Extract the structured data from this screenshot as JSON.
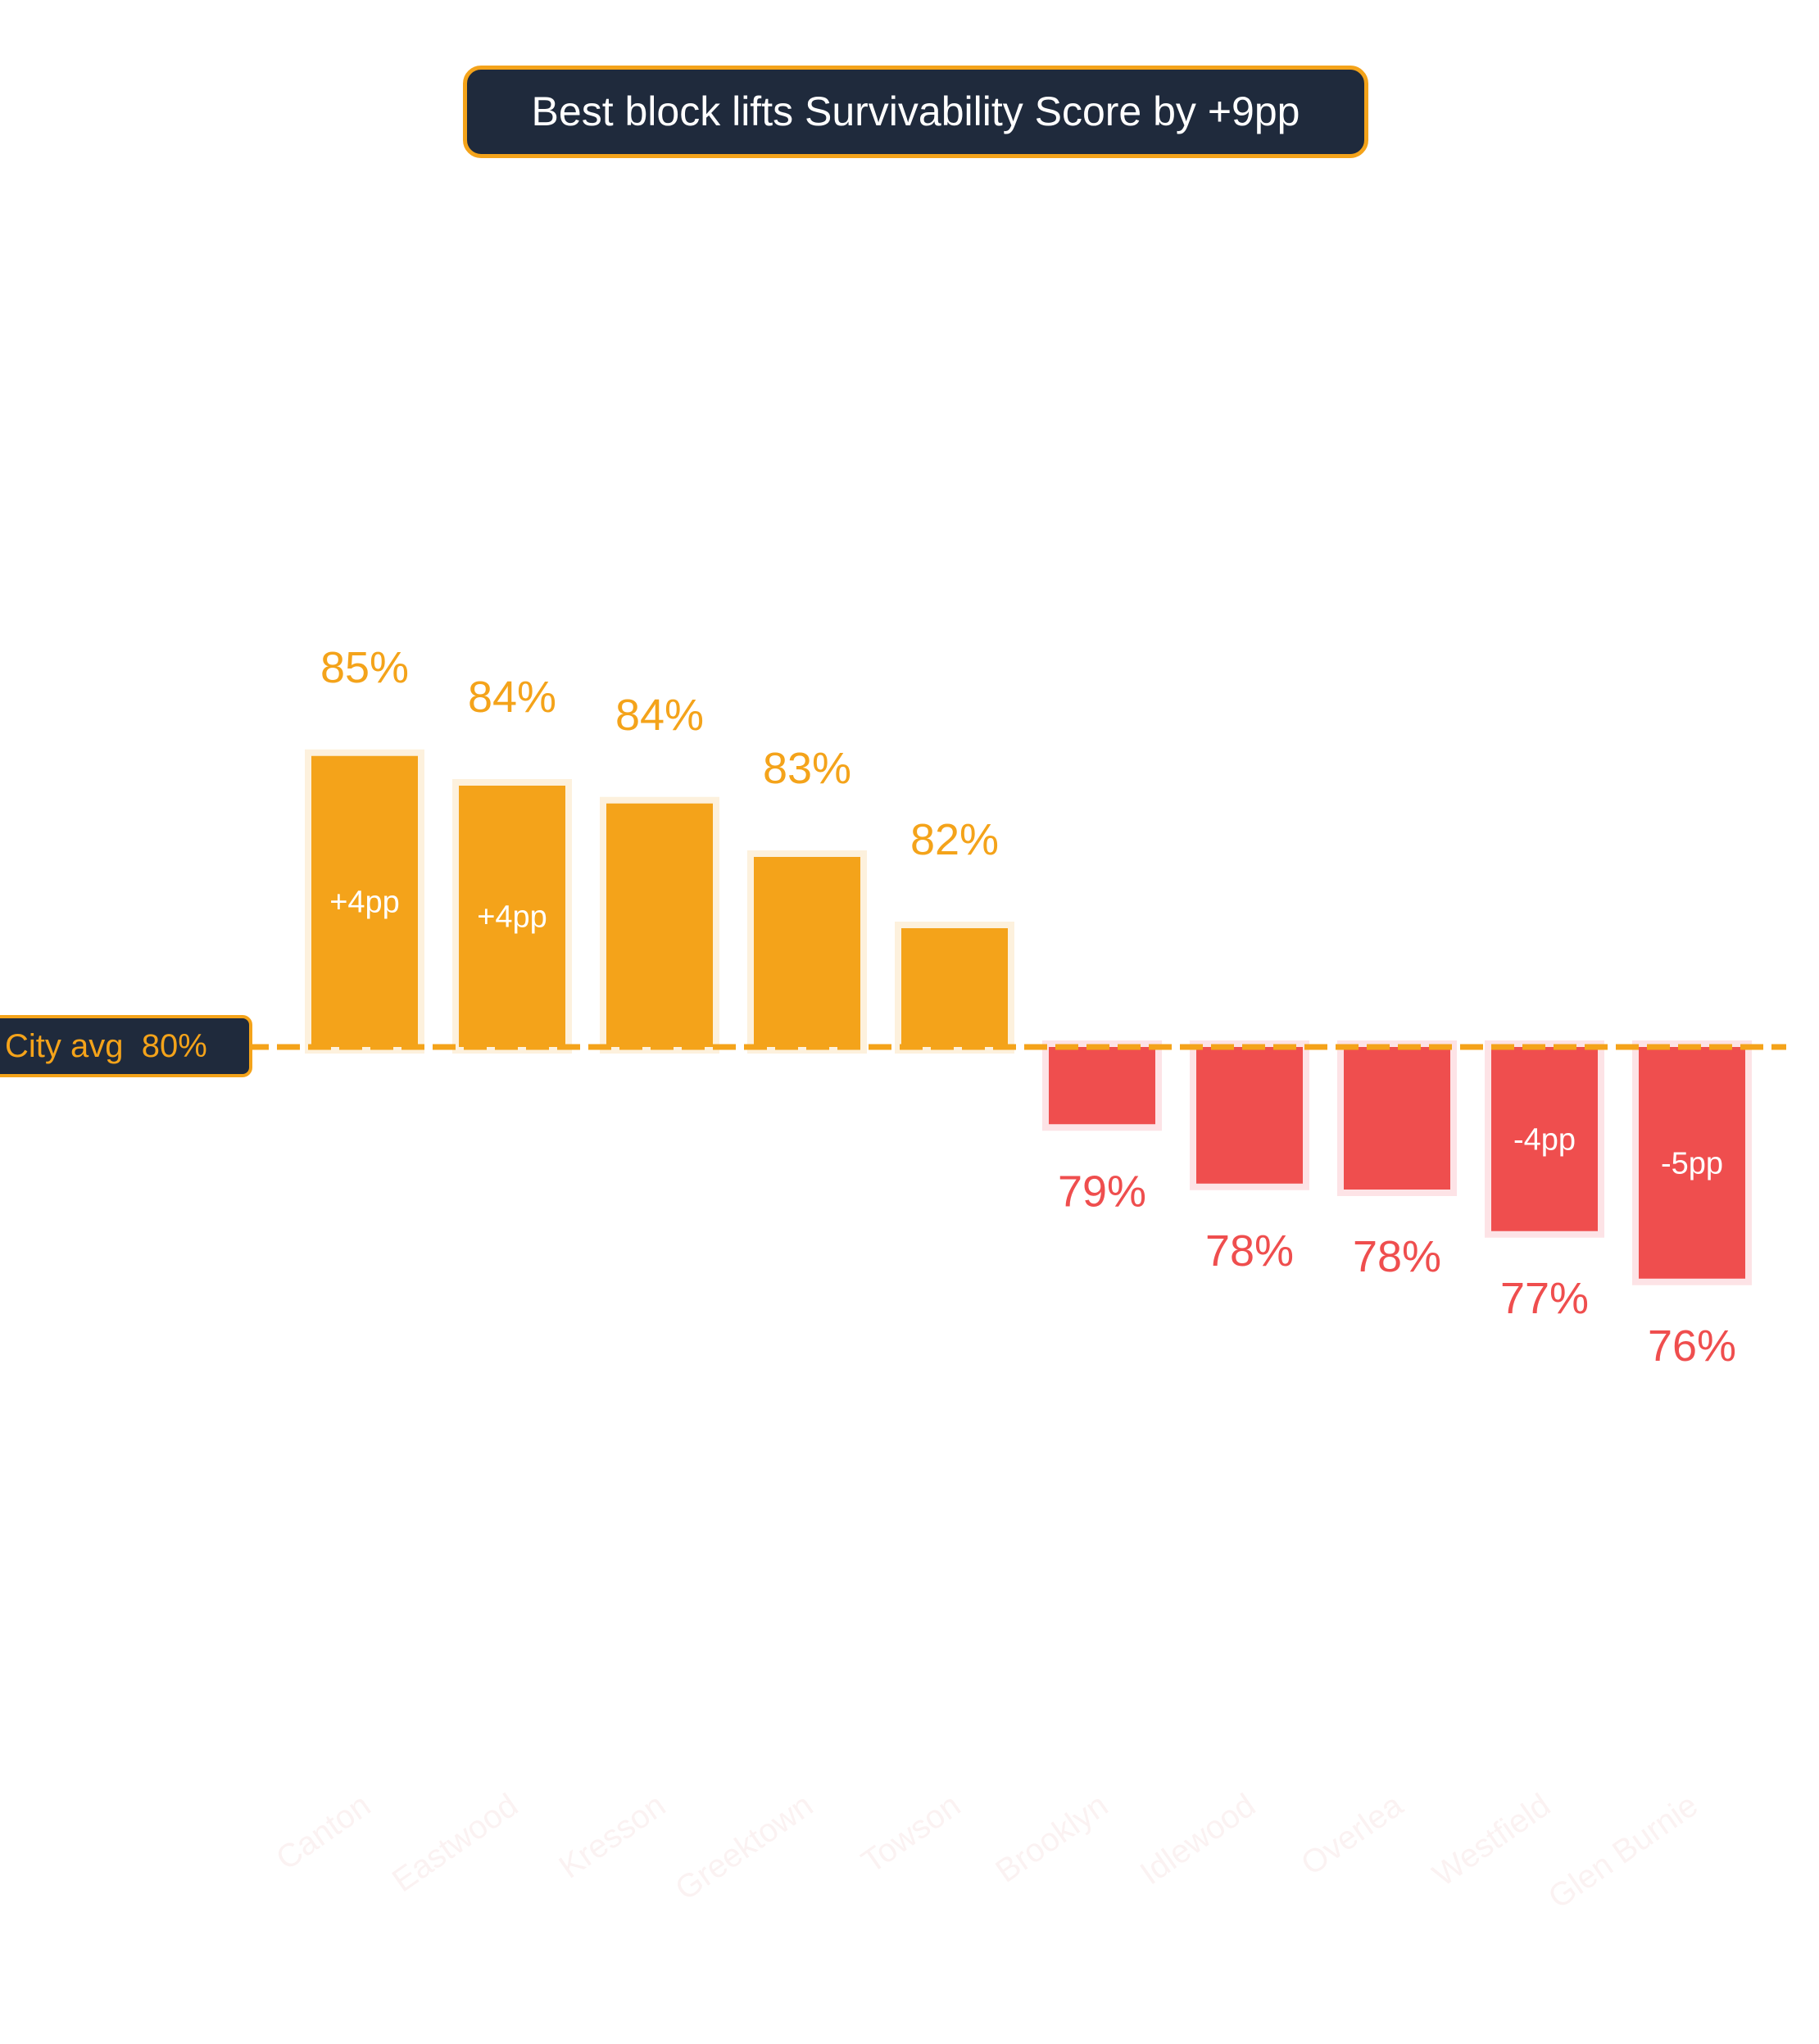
{
  "chart_data": {
    "type": "bar",
    "title": "Best block lifts Survivability Score by +9pp",
    "reference_line": {
      "label": "City avg",
      "value_label": "80%",
      "value": 80
    },
    "categories": [
      "Canton",
      "Eastwood",
      "Kresson",
      "Greektown",
      "Towson",
      "Brooklyn",
      "Idlewood",
      "Overlea",
      "Westfield",
      "Glen Burnie"
    ],
    "values": [
      84.9,
      84.4,
      84.1,
      83.2,
      82.0,
      78.7,
      77.7,
      77.6,
      76.9,
      76.1
    ],
    "value_labels": [
      "85%",
      "84%",
      "84%",
      "83%",
      "82%",
      "79%",
      "78%",
      "78%",
      "77%",
      "76%"
    ],
    "delta_labels": [
      "+4pp",
      "+4pp",
      "",
      "",
      "",
      "",
      "",
      "",
      "-4pp",
      "-5pp"
    ],
    "colors": {
      "above": "#f4a31a",
      "below": "#ef4e4e",
      "above_halo": "#fdf1dd",
      "below_halo": "#fde3e6",
      "title_bg": "#1f2a3c",
      "tick_label": "#fbf2f2"
    },
    "grid": false,
    "legend": "none"
  }
}
